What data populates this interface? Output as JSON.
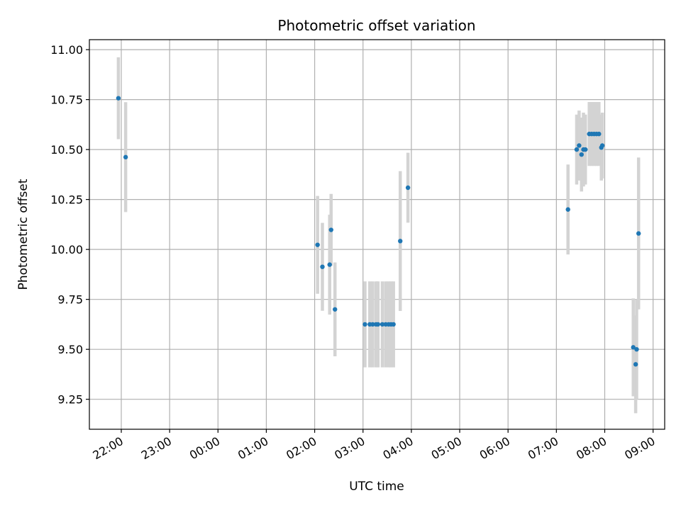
{
  "chart_data": {
    "type": "scatter",
    "title": "Photometric offset variation",
    "xlabel": "UTC time",
    "ylabel": "Photometric offset",
    "x_unit": "hours",
    "xlim": [
      -2.66,
      9.24
    ],
    "ylim": [
      9.1,
      11.05
    ],
    "xticks": [
      -2,
      -1,
      0,
      1,
      2,
      3,
      4,
      5,
      6,
      7,
      8,
      9
    ],
    "xtick_labels": [
      "22:00",
      "23:00",
      "00:00",
      "01:00",
      "02:00",
      "03:00",
      "04:00",
      "05:00",
      "06:00",
      "07:00",
      "08:00",
      "09:00"
    ],
    "yticks": [
      9.25,
      9.5,
      9.75,
      10.0,
      10.25,
      10.5,
      10.75,
      11.0
    ],
    "ytick_labels": [
      "9.25",
      "9.50",
      "9.75",
      "10.00",
      "10.25",
      "10.50",
      "10.75",
      "11.00"
    ],
    "grid": true,
    "colors": {
      "point": "#1f77b4",
      "errorbar": "#d3d3d3",
      "grid": "#b0b0b0",
      "axis": "#000000"
    },
    "points": [
      {
        "x": -2.06,
        "y": 10.757,
        "err": 0.205
      },
      {
        "x": -1.91,
        "y": 10.462,
        "err": 0.275
      },
      {
        "x": 2.06,
        "y": 10.023,
        "err": 0.245
      },
      {
        "x": 2.16,
        "y": 9.913,
        "err": 0.22
      },
      {
        "x": 2.31,
        "y": 9.924,
        "err": 0.25
      },
      {
        "x": 2.34,
        "y": 10.098,
        "err": 0.18
      },
      {
        "x": 2.42,
        "y": 9.7,
        "err": 0.235
      },
      {
        "x": 3.04,
        "y": 9.625,
        "err": 0.215
      },
      {
        "x": 3.14,
        "y": 9.625,
        "err": 0.215
      },
      {
        "x": 3.2,
        "y": 9.625,
        "err": 0.215
      },
      {
        "x": 3.27,
        "y": 9.625,
        "err": 0.215
      },
      {
        "x": 3.31,
        "y": 9.625,
        "err": 0.215
      },
      {
        "x": 3.4,
        "y": 9.625,
        "err": 0.215
      },
      {
        "x": 3.47,
        "y": 9.625,
        "err": 0.215
      },
      {
        "x": 3.53,
        "y": 9.625,
        "err": 0.215
      },
      {
        "x": 3.58,
        "y": 9.625,
        "err": 0.215
      },
      {
        "x": 3.63,
        "y": 9.625,
        "err": 0.215
      },
      {
        "x": 3.77,
        "y": 10.042,
        "err": 0.35
      },
      {
        "x": 3.93,
        "y": 10.309,
        "err": 0.175
      },
      {
        "x": 7.24,
        "y": 10.2,
        "err": 0.225
      },
      {
        "x": 7.42,
        "y": 10.5,
        "err": 0.175
      },
      {
        "x": 7.47,
        "y": 10.52,
        "err": 0.175
      },
      {
        "x": 7.52,
        "y": 10.475,
        "err": 0.185
      },
      {
        "x": 7.56,
        "y": 10.5,
        "err": 0.185
      },
      {
        "x": 7.6,
        "y": 10.5,
        "err": 0.175
      },
      {
        "x": 7.68,
        "y": 10.578,
        "err": 0.16
      },
      {
        "x": 7.73,
        "y": 10.578,
        "err": 0.16
      },
      {
        "x": 7.78,
        "y": 10.578,
        "err": 0.16
      },
      {
        "x": 7.83,
        "y": 10.578,
        "err": 0.16
      },
      {
        "x": 7.88,
        "y": 10.578,
        "err": 0.16
      },
      {
        "x": 7.93,
        "y": 10.51,
        "err": 0.165
      },
      {
        "x": 7.95,
        "y": 10.52,
        "err": 0.165
      },
      {
        "x": 8.59,
        "y": 9.51,
        "err": 0.245
      },
      {
        "x": 8.64,
        "y": 9.425,
        "err": 0.245
      },
      {
        "x": 8.66,
        "y": 9.5,
        "err": 0.25
      },
      {
        "x": 8.7,
        "y": 10.08,
        "err": 0.38
      }
    ]
  }
}
